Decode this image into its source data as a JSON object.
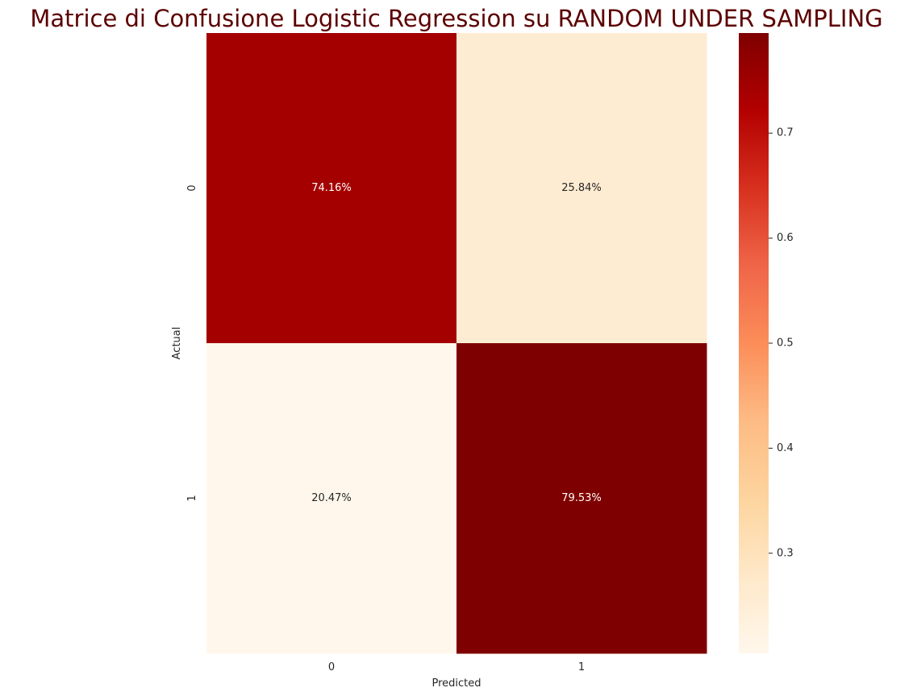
{
  "chart_data": {
    "type": "heatmap",
    "title": "Matrice di Confusione Logistic Regression su RANDOM UNDER SAMPLING",
    "title_color": "#5c0000",
    "xlabel": "Predicted",
    "ylabel": "Actual",
    "x_categories": [
      "0",
      "1"
    ],
    "y_categories": [
      "0",
      "1"
    ],
    "values": [
      [
        0.7416,
        0.2584
      ],
      [
        0.2047,
        0.7953
      ]
    ],
    "annotations": [
      [
        "74.16%",
        "25.84%"
      ],
      [
        "20.47%",
        "79.53%"
      ]
    ],
    "colormap": "OrRd",
    "colorbar": {
      "min": 0.2047,
      "max": 0.7953,
      "ticks": [
        0.3,
        0.4,
        0.5,
        0.6,
        0.7
      ],
      "tick_labels": [
        "0.3",
        "0.4",
        "0.5",
        "0.6",
        "0.7"
      ]
    },
    "grid": false
  }
}
